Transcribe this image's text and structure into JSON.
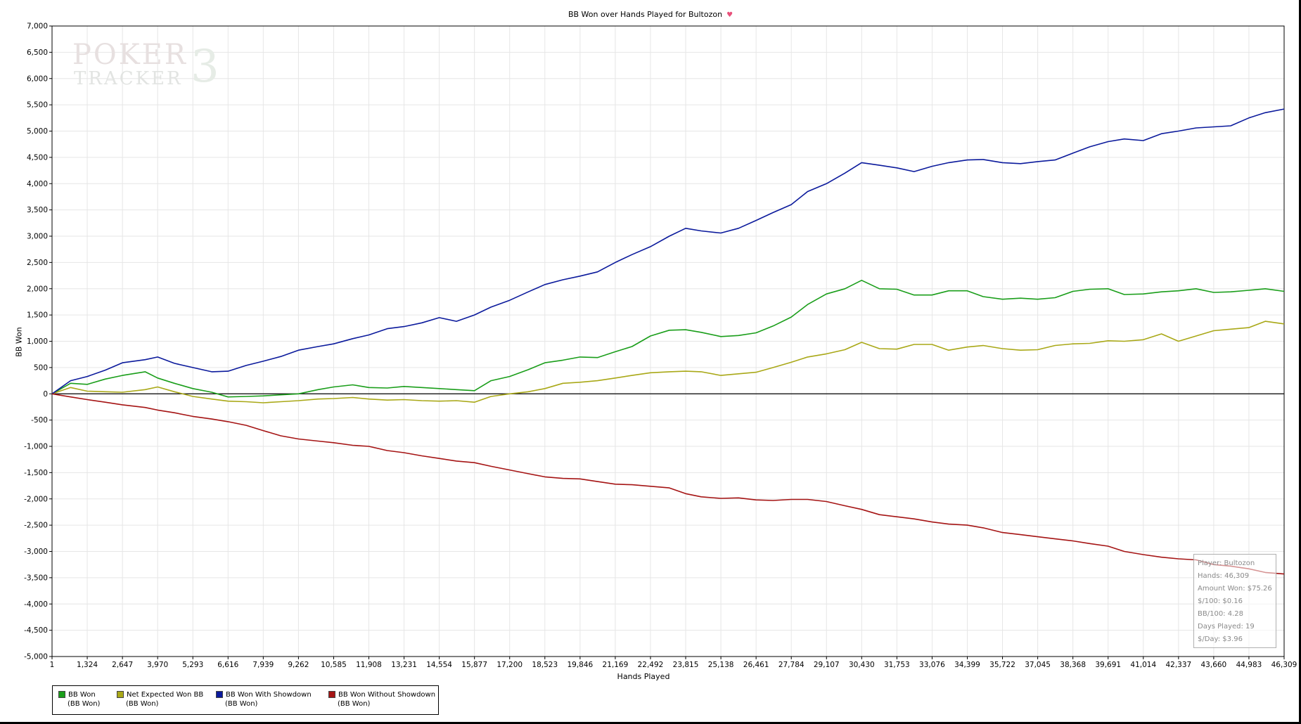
{
  "colors": {
    "bb_won": "#1a9e1a",
    "net_expected": "#a9a817",
    "with_showdown": "#0b1a9c",
    "without_showdown": "#a51414",
    "grid": "#e6e6e6",
    "zero_line": "#000000"
  },
  "icons": {
    "title_heart": "heart-icon"
  },
  "title": "BB Won over Hands Played for Bultozon",
  "watermark": {
    "line1": "POKER",
    "line2": "TRACKER",
    "digit": "3"
  },
  "tooltip": {
    "player": "Player: Bultozon",
    "hands": "Hands: 46,309",
    "amount_won": "Amount Won: $75.26",
    "dollar_per_100": "$/100: $0.16",
    "bb_per_100": "BB/100: 4.28",
    "days_played": "Days Played: 19",
    "dollar_per_day": "$/Day: $3.96"
  },
  "legend": [
    {
      "name": "BB Won",
      "sub": "(BB Won)"
    },
    {
      "name": "Net Expected Won BB",
      "sub": "(BB Won)"
    },
    {
      "name": "BB Won With Showdown",
      "sub": "(BB Won)"
    },
    {
      "name": "BB Won Without Showdown",
      "sub": "(BB Won)"
    }
  ],
  "chart_data": {
    "type": "line",
    "title": "BB Won over Hands Played for Bultozon",
    "xlabel": "Hands Played",
    "ylabel": "BB Won",
    "xlim": [
      1,
      46309
    ],
    "ylim": [
      -5000,
      7000
    ],
    "grid": true,
    "legend_position": "bottom-left",
    "x_tick_labels": [
      "1",
      "1,324",
      "2,647",
      "3,970",
      "5,293",
      "6,616",
      "7,939",
      "9,262",
      "10,585",
      "11,908",
      "13,231",
      "14,554",
      "15,877",
      "17,200",
      "18,523",
      "19,846",
      "21,169",
      "22,492",
      "23,815",
      "25,138",
      "26,461",
      "27,784",
      "29,107",
      "30,430",
      "31,753",
      "33,076",
      "34,399",
      "35,722",
      "37,045",
      "38,368",
      "39,691",
      "41,014",
      "42,337",
      "43,660",
      "44,983",
      "46,309"
    ],
    "y_tick_labels": [
      "7,000",
      "6,500",
      "6,000",
      "5,500",
      "5,000",
      "4,500",
      "4,000",
      "3,500",
      "3,000",
      "2,500",
      "2,000",
      "1,500",
      "1,000",
      "500",
      "0",
      "-500",
      "-1,000",
      "-1,500",
      "-2,000",
      "-2,500",
      "-3,000",
      "-3,500",
      "-4,000",
      "-4,500",
      "-5,000"
    ],
    "x": [
      1,
      700,
      1324,
      2000,
      2647,
      3500,
      3970,
      4600,
      5293,
      6000,
      6616,
      7300,
      7939,
      8600,
      9262,
      10000,
      10585,
      11300,
      11908,
      12600,
      13231,
      13900,
      14554,
      15200,
      15877,
      16500,
      17200,
      17900,
      18523,
      19200,
      19846,
      20500,
      21169,
      21800,
      22492,
      23200,
      23815,
      24400,
      25138,
      25800,
      26461,
      27100,
      27784,
      28400,
      29107,
      29800,
      30430,
      31100,
      31753,
      32400,
      33076,
      33700,
      34399,
      35000,
      35722,
      36400,
      37045,
      37700,
      38368,
      39000,
      39691,
      40300,
      41014,
      41700,
      42337,
      43000,
      43660,
      44300,
      44983,
      45600,
      46309
    ],
    "series": [
      {
        "name": "BB Won",
        "values": [
          0,
          200,
          180,
          280,
          350,
          420,
          300,
          200,
          100,
          30,
          -60,
          -50,
          -40,
          -20,
          0,
          80,
          130,
          170,
          120,
          110,
          140,
          120,
          100,
          80,
          60,
          250,
          330,
          460,
          590,
          640,
          700,
          690,
          800,
          900,
          1100,
          1210,
          1220,
          1170,
          1090,
          1110,
          1160,
          1290,
          1460,
          1700,
          1900,
          2000,
          2160,
          2000,
          1990,
          1880,
          1880,
          1960,
          1960,
          1850,
          1800,
          1820,
          1800,
          1830,
          1950,
          1990,
          2000,
          1890,
          1900,
          1940,
          1960,
          2000,
          1930,
          1940,
          1970,
          2000,
          1950
        ]
      },
      {
        "name": "Net Expected Won BB",
        "values": [
          0,
          120,
          50,
          40,
          30,
          80,
          130,
          40,
          -50,
          -100,
          -140,
          -150,
          -170,
          -150,
          -130,
          -100,
          -90,
          -70,
          -100,
          -120,
          -110,
          -130,
          -140,
          -130,
          -160,
          -50,
          0,
          40,
          100,
          200,
          220,
          250,
          300,
          350,
          400,
          420,
          430,
          420,
          350,
          380,
          410,
          500,
          600,
          700,
          760,
          840,
          980,
          860,
          850,
          940,
          940,
          830,
          890,
          920,
          860,
          830,
          840,
          920,
          950,
          960,
          1010,
          1000,
          1030,
          1140,
          1000,
          1100,
          1200,
          1230,
          1260,
          1380,
          1330
        ]
      },
      {
        "name": "BB Won With Showdown",
        "values": [
          0,
          250,
          330,
          450,
          590,
          650,
          700,
          580,
          500,
          420,
          430,
          540,
          620,
          710,
          830,
          900,
          950,
          1050,
          1120,
          1240,
          1280,
          1350,
          1450,
          1380,
          1500,
          1650,
          1780,
          1940,
          2080,
          2170,
          2240,
          2320,
          2500,
          2650,
          2800,
          3000,
          3150,
          3100,
          3060,
          3150,
          3300,
          3450,
          3600,
          3850,
          4000,
          4200,
          4400,
          4350,
          4300,
          4230,
          4330,
          4400,
          4450,
          4460,
          4400,
          4380,
          4420,
          4450,
          4580,
          4700,
          4800,
          4850,
          4820,
          4950,
          5000,
          5060,
          5080,
          5100,
          5250,
          5350,
          5420
        ]
      },
      {
        "name": "BB Won Without Showdown",
        "values": [
          0,
          -60,
          -110,
          -160,
          -210,
          -260,
          -310,
          -360,
          -430,
          -480,
          -530,
          -600,
          -700,
          -800,
          -860,
          -900,
          -930,
          -980,
          -1000,
          -1080,
          -1120,
          -1180,
          -1230,
          -1280,
          -1310,
          -1380,
          -1450,
          -1520,
          -1580,
          -1610,
          -1620,
          -1670,
          -1720,
          -1730,
          -1760,
          -1790,
          -1900,
          -1960,
          -1990,
          -1980,
          -2020,
          -2030,
          -2010,
          -2010,
          -2050,
          -2130,
          -2200,
          -2300,
          -2340,
          -2380,
          -2440,
          -2480,
          -2500,
          -2550,
          -2640,
          -2680,
          -2720,
          -2760,
          -2800,
          -2850,
          -2900,
          -3000,
          -3060,
          -3110,
          -3140,
          -3160,
          -3250,
          -3280,
          -3330,
          -3400,
          -3430
        ]
      }
    ]
  }
}
